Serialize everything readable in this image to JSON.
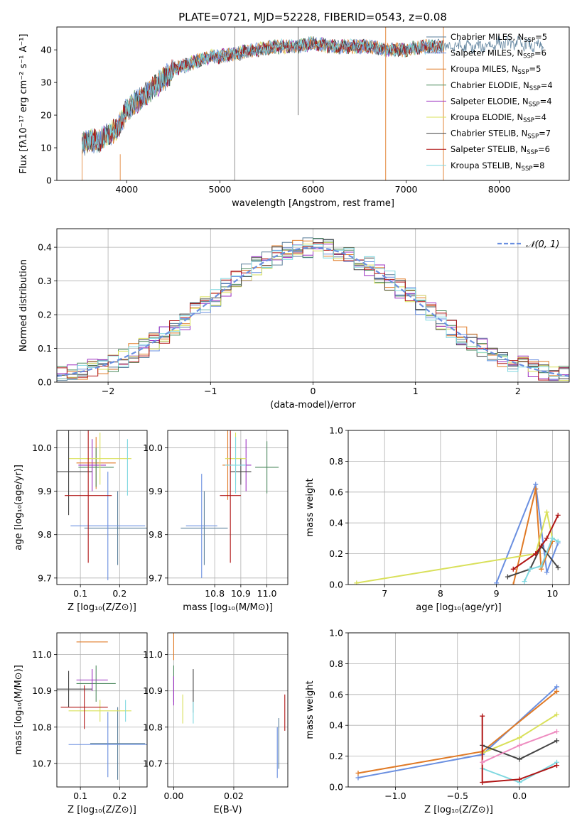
{
  "figure": {
    "title": "PLATE=0721, MJD=52228, FIBERID=0543, z=0.08"
  },
  "models": [
    {
      "label": "Chabrier MILES, N",
      "sub": "SSP",
      "suffix": "=5",
      "color": "#5b7f9b"
    },
    {
      "label": "Salpeter MILES, N",
      "sub": "SSP",
      "suffix": "=6",
      "color": "#6a8fe0"
    },
    {
      "label": "Kroupa MILES, N",
      "sub": "SSP",
      "suffix": "=5",
      "color": "#e07a26"
    },
    {
      "label": "Chabrier ELODIE, N",
      "sub": "SSP",
      "suffix": "=4",
      "color": "#4e8a5f"
    },
    {
      "label": "Salpeter ELODIE, N",
      "sub": "SSP",
      "suffix": "=4",
      "color": "#9b2fc0"
    },
    {
      "label": "Kroupa ELODIE, N",
      "sub": "SSP",
      "suffix": "=4",
      "color": "#d9e05a"
    },
    {
      "label": "Chabrier STELIB, N",
      "sub": "SSP",
      "suffix": "=7",
      "color": "#444444"
    },
    {
      "label": "Salpeter STELIB, N",
      "sub": "SSP",
      "suffix": "=6",
      "color": "#b01515"
    },
    {
      "label": "Kroupa STELIB, N",
      "sub": "SSP",
      "suffix": "=8",
      "color": "#7fd8e0"
    }
  ],
  "chart_data": [
    {
      "id": "spectrum",
      "type": "line",
      "xlabel": "wavelength [Angstrom, rest frame]",
      "ylabel": "Flux [fλ10⁻¹⁷ erg cm⁻² s⁻¹ A⁻¹]",
      "xlim": [
        3250,
        8750
      ],
      "ylim": [
        0,
        47
      ],
      "xticks": [
        4000,
        5000,
        6000,
        7000,
        8000
      ],
      "yticks": [
        0,
        10,
        20,
        30,
        40
      ],
      "grid": false,
      "legend_position": "upper-right",
      "continuum": {
        "x": [
          3520,
          3600,
          3700,
          3800,
          3900,
          3960,
          4000,
          4100,
          4200,
          4300,
          4400,
          4500,
          4600,
          4700,
          4800,
          4900,
          5000,
          5200,
          5400,
          5600,
          5800,
          6000,
          6200,
          6400,
          6600,
          6800,
          7000,
          7200,
          7400,
          7600,
          7800,
          8000,
          8200,
          8400,
          8500
        ],
        "y": [
          11,
          12,
          12,
          14,
          16,
          19,
          22,
          24,
          26,
          29,
          31,
          34,
          35,
          36,
          37,
          38,
          38,
          39,
          40,
          41,
          41,
          42,
          41,
          41,
          41,
          40,
          40,
          41,
          41,
          41,
          41,
          42,
          42,
          41,
          41
        ]
      },
      "spikes_x": [
        5160,
        5840,
        6780,
        7400
      ]
    },
    {
      "id": "residual-histogram",
      "type": "line",
      "xlabel": "(data-model)/error",
      "ylabel": "Normed distribution",
      "xlim": [
        -2.5,
        2.5
      ],
      "ylim": [
        0,
        0.455
      ],
      "xticks": [
        -2,
        -1,
        0,
        1,
        2
      ],
      "xtick_labels": [
        "−2",
        "−1",
        "0",
        "1",
        "2"
      ],
      "yticks": [
        0.0,
        0.1,
        0.2,
        0.3,
        0.4
      ],
      "ytick_labels": [
        "0.0",
        "0.1",
        "0.2",
        "0.3",
        "0.4"
      ],
      "grid": true,
      "reference_curve": {
        "label": "𝒩(0, 1)",
        "mean": 0,
        "sigma": 1,
        "style": "dashed"
      },
      "bin_width": 0.1
    },
    {
      "id": "age-vs-Z",
      "type": "scatter",
      "xlabel": "Z [log₁₀(Z/Z⊙)]",
      "ylabel": "age  [log₁₀(age/yr)]",
      "xlim": [
        0.04,
        0.27
      ],
      "ylim": [
        9.685,
        10.04
      ],
      "xticks": [
        0.1,
        0.2
      ],
      "xtick_labels": [
        "0.1",
        "0.2"
      ],
      "yticks": [
        9.7,
        9.8,
        9.9,
        10.0
      ],
      "ytick_labels": [
        "9.7",
        "9.8",
        "9.9",
        "10.0"
      ],
      "grid": true,
      "points": [
        {
          "x": 0.195,
          "y": 9.815,
          "xerr": 0.085,
          "yerr": 0.085
        },
        {
          "x": 0.17,
          "y": 9.82,
          "xerr": 0.095,
          "yerr": 0.125
        },
        {
          "x": 0.14,
          "y": 9.965,
          "xerr": 0.05,
          "yerr": 0.06
        },
        {
          "x": 0.14,
          "y": 9.955,
          "xerr": 0.045,
          "yerr": 0.045
        },
        {
          "x": 0.13,
          "y": 9.96,
          "xerr": 0.035,
          "yerr": 0.06
        },
        {
          "x": 0.15,
          "y": 9.975,
          "xerr": 0.08,
          "yerr": 0.06
        },
        {
          "x": 0.07,
          "y": 9.945,
          "xerr": 0.06,
          "yerr": 0.1
        },
        {
          "x": 0.12,
          "y": 9.89,
          "xerr": 0.06,
          "yerr": 0.155
        },
        {
          "x": 0.22,
          "y": 9.955,
          "xerr": 0.0,
          "yerr": 0.065
        }
      ]
    },
    {
      "id": "age-vs-mass",
      "type": "scatter",
      "xlabel": "mass [log₁₀(M/M⊙)]",
      "ylabel": "",
      "xlim": [
        10.62,
        11.08
      ],
      "ylim": [
        9.685,
        10.04
      ],
      "xticks": [
        10.8,
        10.9,
        11.0
      ],
      "xtick_labels": [
        "10.8",
        "10.9",
        "11.0"
      ],
      "yticks": [
        9.7,
        9.8,
        9.9,
        10.0
      ],
      "ytick_labels": [
        "9.7",
        "9.8",
        "9.9",
        "10.0"
      ],
      "grid": true,
      "points": [
        {
          "x": 10.76,
          "y": 9.815,
          "xerr": 0.09,
          "yerr": 0.085
        },
        {
          "x": 10.75,
          "y": 9.82,
          "xerr": 0.06,
          "yerr": 0.12
        },
        {
          "x": 10.85,
          "y": 9.96,
          "xerr": 0.02,
          "yerr": 0.08
        },
        {
          "x": 11.0,
          "y": 9.955,
          "xerr": 0.045,
          "yerr": 0.06
        },
        {
          "x": 10.92,
          "y": 9.96,
          "xerr": 0.02,
          "yerr": 0.06
        },
        {
          "x": 10.88,
          "y": 9.975,
          "xerr": 0.04,
          "yerr": 0.06
        },
        {
          "x": 10.9,
          "y": 9.945,
          "xerr": 0.04,
          "yerr": 0.03
        },
        {
          "x": 10.86,
          "y": 9.89,
          "xerr": 0.04,
          "yerr": 0.155
        },
        {
          "x": 10.88,
          "y": 9.96,
          "xerr": 0.04,
          "yerr": 0.065
        }
      ]
    },
    {
      "id": "mass-weight-vs-age",
      "type": "line",
      "xlabel": "age  [log₁₀(age/yr)]",
      "ylabel": "mass weight",
      "xlim": [
        6.35,
        10.3
      ],
      "ylim": [
        0,
        1.0
      ],
      "xticks": [
        7,
        8,
        9,
        10
      ],
      "xtick_labels": [
        "7",
        "8",
        "9",
        "10"
      ],
      "yticks": [
        0.0,
        0.2,
        0.4,
        0.6,
        0.8,
        1.0
      ],
      "ytick_labels": [
        "0.0",
        "0.2",
        "0.4",
        "0.6",
        "0.8",
        "1.0"
      ],
      "grid": true,
      "series": [
        {
          "x": [
            9.0,
            9.7,
            9.9,
            10.1
          ],
          "y": [
            0.01,
            0.65,
            0.08,
            0.27
          ]
        },
        {
          "x": [
            9.3,
            9.7,
            9.8,
            10.0
          ],
          "y": [
            0.0,
            0.62,
            0.1,
            0.28
          ]
        },
        {
          "x": [
            6.5,
            9.7,
            9.9,
            10.0
          ],
          "y": [
            0.01,
            0.2,
            0.47,
            0.3
          ]
        },
        {
          "x": [
            9.2,
            9.6,
            9.8,
            10.1
          ],
          "y": [
            0.05,
            0.1,
            0.25,
            0.11
          ]
        },
        {
          "x": [
            9.3,
            9.7,
            9.9,
            10.1
          ],
          "y": [
            0.1,
            0.2,
            0.3,
            0.45
          ]
        },
        {
          "x": [
            9.5,
            9.6,
            9.8,
            10.0,
            10.1
          ],
          "y": [
            0.02,
            0.1,
            0.12,
            0.3,
            0.28
          ]
        }
      ]
    },
    {
      "id": "mass-vs-Z",
      "type": "scatter",
      "xlabel": "Z [log₁₀(Z/Z⊙)]",
      "ylabel": "mass [log₁₀(M/M⊙)]",
      "xlim": [
        0.04,
        0.27
      ],
      "ylim": [
        10.635,
        11.06
      ],
      "xticks": [
        0.1,
        0.2
      ],
      "xtick_labels": [
        "0.1",
        "0.2"
      ],
      "yticks": [
        10.7,
        10.8,
        10.9,
        11.0
      ],
      "ytick_labels": [
        "10.7",
        "10.8",
        "10.9",
        "11.0"
      ],
      "grid": true,
      "points": [
        {
          "x": 0.195,
          "y": 10.755,
          "xerr": 0.07,
          "yerr": 0.1
        },
        {
          "x": 0.17,
          "y": 10.752,
          "xerr": 0.1,
          "yerr": 0.09
        },
        {
          "x": 0.13,
          "y": 11.035,
          "xerr": 0.04,
          "yerr": 0.0
        },
        {
          "x": 0.14,
          "y": 10.92,
          "xerr": 0.05,
          "yerr": 0.05
        },
        {
          "x": 0.13,
          "y": 10.93,
          "xerr": 0.04,
          "yerr": 0.03
        },
        {
          "x": 0.15,
          "y": 10.845,
          "xerr": 0.08,
          "yerr": 0.03
        },
        {
          "x": 0.07,
          "y": 10.905,
          "xerr": 0.06,
          "yerr": 0.05
        },
        {
          "x": 0.11,
          "y": 10.855,
          "xerr": 0.06,
          "yerr": 0.06
        },
        {
          "x": 0.215,
          "y": 10.845,
          "xerr": 0.0,
          "yerr": 0.03
        }
      ]
    },
    {
      "id": "mass-vs-ebv",
      "type": "scatter",
      "xlabel": "E(B-V)",
      "ylabel": "",
      "xlim": [
        -0.002,
        0.038
      ],
      "ylim": [
        10.635,
        11.06
      ],
      "xticks": [
        0.0,
        0.02
      ],
      "xtick_labels": [
        "0.00",
        "0.02"
      ],
      "yticks": [
        10.7,
        10.8,
        10.9,
        11.0
      ],
      "ytick_labels": [
        "10.7",
        "10.8",
        "10.9",
        "11.0"
      ],
      "grid": true,
      "points": [
        {
          "x": 0.035,
          "y": 10.755,
          "xerr": 0.0,
          "yerr": 0.07
        },
        {
          "x": 0.0345,
          "y": 10.73,
          "xerr": 0.0,
          "yerr": 0.07
        },
        {
          "x": 0.0,
          "y": 11.035,
          "xerr": 0.0,
          "yerr": 0.05
        },
        {
          "x": 0.0,
          "y": 10.92,
          "xerr": 0.0,
          "yerr": 0.05
        },
        {
          "x": 0.0,
          "y": 10.9,
          "xerr": 0.0,
          "yerr": 0.04
        },
        {
          "x": 0.003,
          "y": 10.85,
          "xerr": 0.0,
          "yerr": 0.04
        },
        {
          "x": 0.0065,
          "y": 10.9,
          "xerr": 0.0,
          "yerr": 0.06
        },
        {
          "x": 0.037,
          "y": 10.84,
          "xerr": 0.0,
          "yerr": 0.05
        },
        {
          "x": 0.0065,
          "y": 10.84,
          "xerr": 0.0,
          "yerr": 0.03
        }
      ]
    },
    {
      "id": "mass-weight-vs-Z",
      "type": "line",
      "xlabel": "Z [log₁₀(Z/Z⊙)]",
      "ylabel": "mass weight",
      "xlim": [
        -1.38,
        0.4
      ],
      "ylim": [
        0,
        1.0
      ],
      "xticks": [
        -1.0,
        -0.5,
        0.0
      ],
      "xtick_labels": [
        "−1.0",
        "−0.5",
        "0.0"
      ],
      "yticks": [
        0.0,
        0.2,
        0.4,
        0.6,
        0.8,
        1.0
      ],
      "ytick_labels": [
        "0.0",
        "0.2",
        "0.4",
        "0.6",
        "0.8",
        "1.0"
      ],
      "grid": true,
      "series": [
        {
          "x": [
            -1.3,
            -0.3,
            0.3
          ],
          "y": [
            0.06,
            0.21,
            0.65
          ]
        },
        {
          "x": [
            -1.3,
            -0.3,
            0.3
          ],
          "y": [
            0.09,
            0.23,
            0.62
          ]
        },
        {
          "x": [
            -0.3,
            0.0,
            0.3
          ],
          "y": [
            0.22,
            0.32,
            0.47
          ]
        },
        {
          "x": [
            -0.3,
            0.0,
            0.3
          ],
          "y": [
            0.12,
            0.03,
            0.16
          ]
        },
        {
          "x": [
            -0.3,
            0.0,
            0.3
          ],
          "y": [
            0.27,
            0.18,
            0.3
          ]
        },
        {
          "x": [
            -0.3,
            -0.3,
            0.0,
            0.3
          ],
          "y": [
            0.46,
            0.03,
            0.05,
            0.14
          ]
        },
        {
          "x": [
            -0.3,
            0.0,
            0.3
          ],
          "y": [
            0.16,
            0.27,
            0.36
          ]
        }
      ]
    }
  ]
}
